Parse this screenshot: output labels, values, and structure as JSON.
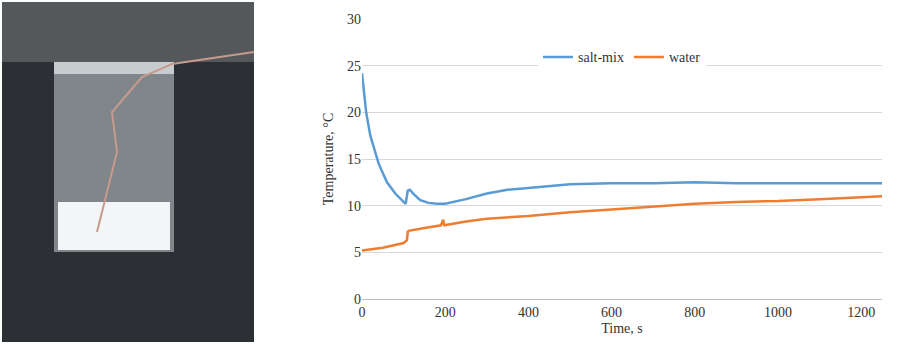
{
  "chart_data": {
    "type": "line",
    "x_label": "Time, s",
    "y_label": "Temperature, °C",
    "xlim": [
      0,
      1250
    ],
    "xticks": [
      0,
      200,
      400,
      600,
      800,
      1000,
      1200
    ],
    "ylim": [
      0,
      30
    ],
    "yticks": [
      0,
      5,
      10,
      15,
      20,
      25,
      30
    ],
    "grid": true,
    "legend": "top",
    "series": [
      {
        "name": "salt-mix",
        "color": "#5b9bd5",
        "x": [
          0,
          10,
          20,
          40,
          60,
          80,
          100,
          105,
          110,
          115,
          125,
          140,
          160,
          180,
          200,
          250,
          300,
          350,
          400,
          450,
          500,
          600,
          700,
          800,
          900,
          1000,
          1100,
          1250
        ],
        "values": [
          24.2,
          20,
          17.5,
          14.5,
          12.5,
          11.3,
          10.4,
          10.2,
          11.6,
          11.7,
          11.2,
          10.6,
          10.3,
          10.2,
          10.2,
          10.7,
          11.3,
          11.7,
          11.9,
          12.1,
          12.3,
          12.4,
          12.4,
          12.5,
          12.4,
          12.4,
          12.4,
          12.4
        ]
      },
      {
        "name": "water",
        "color": "#ed7d31",
        "x": [
          0,
          50,
          100,
          108,
          110,
          112,
          150,
          190,
          195,
          198,
          250,
          300,
          400,
          500,
          600,
          700,
          800,
          900,
          1000,
          1100,
          1200,
          1250
        ],
        "values": [
          5.2,
          5.5,
          6.0,
          6.3,
          7.2,
          7.3,
          7.6,
          7.9,
          8.5,
          7.9,
          8.3,
          8.6,
          8.9,
          9.3,
          9.6,
          9.9,
          10.2,
          10.4,
          10.5,
          10.7,
          10.9,
          11.0
        ]
      }
    ]
  }
}
